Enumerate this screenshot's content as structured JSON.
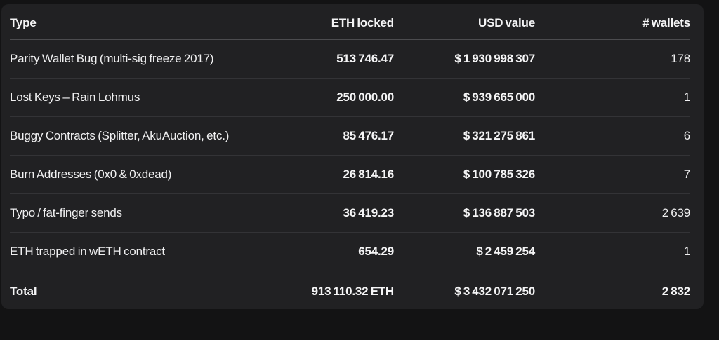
{
  "colors": {
    "page_background": "#131314",
    "card_background": "#212123",
    "header_divider": "#4c4c4f",
    "row_divider": "#333336",
    "text": "#f0f0f1"
  },
  "table": {
    "columns": {
      "type": "Type",
      "eth_locked": "ETH locked",
      "usd_value": "USD value",
      "wallets": "# wallets"
    },
    "rows": [
      {
        "type": "Parity Wallet Bug (multi-sig freeze 2017)",
        "eth_locked": "513 746.47",
        "usd_value": "$ 1 930 998 307",
        "wallets": "178"
      },
      {
        "type": "Lost Keys – Rain Lohmus",
        "eth_locked": "250 000.00",
        "usd_value": "$ 939 665 000",
        "wallets": "1"
      },
      {
        "type": "Buggy Contracts (Splitter, AkuAuction, etc.)",
        "eth_locked": "85 476.17",
        "usd_value": "$ 321 275 861",
        "wallets": "6"
      },
      {
        "type": "Burn Addresses (0x0 & 0xdead)",
        "eth_locked": "26 814.16",
        "usd_value": "$ 100 785 326",
        "wallets": "7"
      },
      {
        "type": "Typo / fat-finger sends",
        "eth_locked": "36 419.23",
        "usd_value": "$ 136 887 503",
        "wallets": "2 639"
      },
      {
        "type": "ETH trapped in wETH contract",
        "eth_locked": "654.29",
        "usd_value": "$ 2 459 254",
        "wallets": "1"
      }
    ],
    "total": {
      "type": "Total",
      "eth_locked": "913 110.32 ETH",
      "usd_value": "$ 3 432 071 250",
      "wallets": "2 832"
    }
  }
}
